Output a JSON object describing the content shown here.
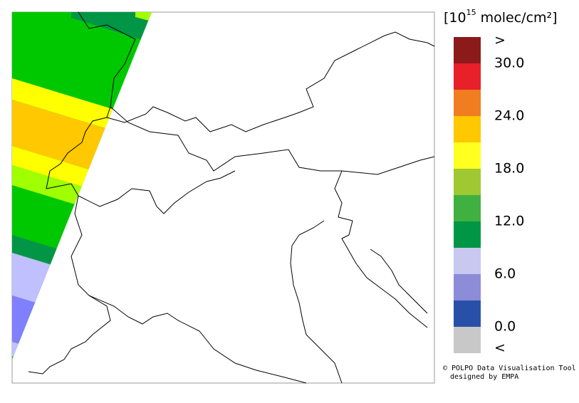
{
  "legend": {
    "title_open": "[10",
    "title_exp": "15",
    "title_rest": " molec/cm²]",
    "colors": [
      "#8c1a1a",
      "#e8202a",
      "#f07d20",
      "#ffc800",
      "#ffff20",
      "#a0c832",
      "#40b040",
      "#009646",
      "#c8c8f0",
      "#8c8cd8",
      "#2850a8",
      "#c8c8c8"
    ],
    "labels": [
      ">",
      "30.0",
      "24.0",
      "18.0",
      "12.0",
      "6.0",
      "0.0",
      "<"
    ]
  },
  "credit": {
    "line1": "© POLPO Data Visualisation Tool",
    "line2": "designed by EMPA"
  }
}
